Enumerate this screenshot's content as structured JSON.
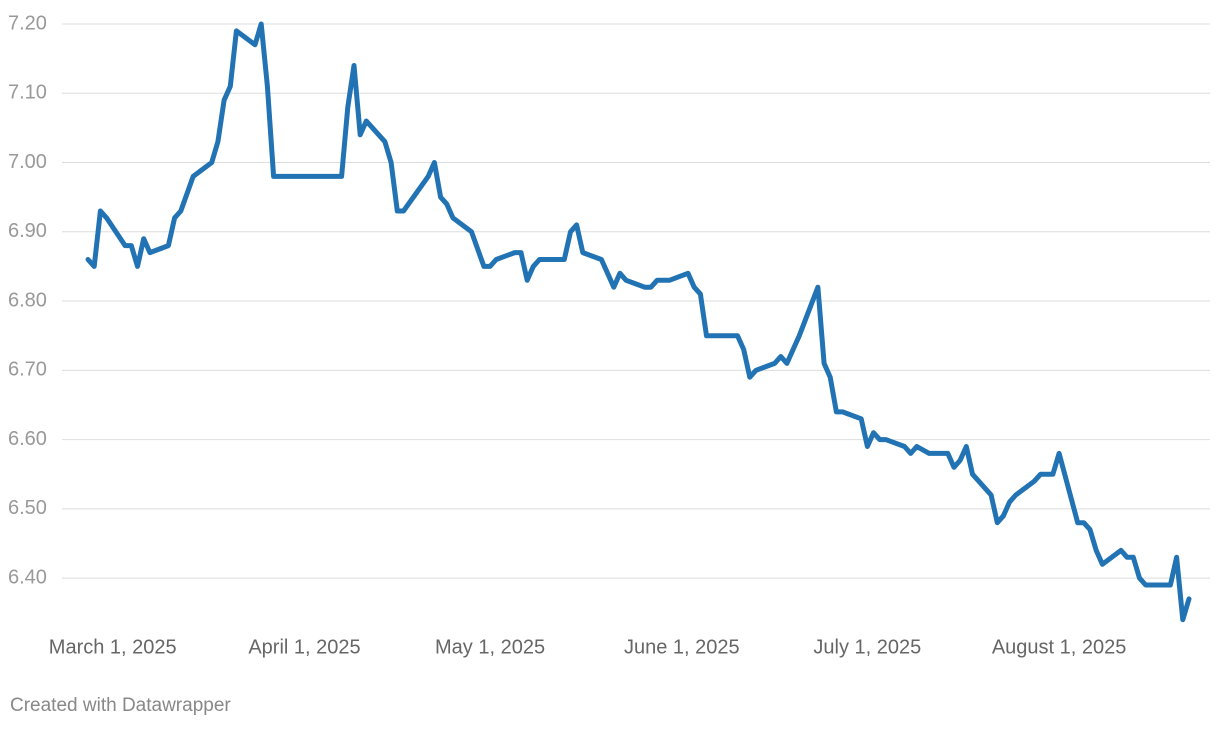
{
  "chart_data": {
    "type": "line",
    "x": [
      "2025-02-25",
      "2025-02-26",
      "2025-02-27",
      "2025-02-28",
      "2025-03-03",
      "2025-03-04",
      "2025-03-05",
      "2025-03-06",
      "2025-03-07",
      "2025-03-10",
      "2025-03-11",
      "2025-03-12",
      "2025-03-14",
      "2025-03-17",
      "2025-03-18",
      "2025-03-19",
      "2025-03-20",
      "2025-03-21",
      "2025-03-24",
      "2025-03-25",
      "2025-03-26",
      "2025-03-27",
      "2025-04-07",
      "2025-04-08",
      "2025-04-09",
      "2025-04-10",
      "2025-04-11",
      "2025-04-14",
      "2025-04-15",
      "2025-04-16",
      "2025-04-17",
      "2025-04-21",
      "2025-04-22",
      "2025-04-23",
      "2025-04-24",
      "2025-04-25",
      "2025-04-28",
      "2025-04-30",
      "2025-05-01",
      "2025-05-02",
      "2025-05-05",
      "2025-05-06",
      "2025-05-07",
      "2025-05-08",
      "2025-05-09",
      "2025-05-13",
      "2025-05-14",
      "2025-05-15",
      "2025-05-16",
      "2025-05-19",
      "2025-05-20",
      "2025-05-21",
      "2025-05-22",
      "2025-05-23",
      "2025-05-26",
      "2025-05-27",
      "2025-05-28",
      "2025-05-30",
      "2025-06-02",
      "2025-06-03",
      "2025-06-04",
      "2025-06-05",
      "2025-06-10",
      "2025-06-11",
      "2025-06-12",
      "2025-06-13",
      "2025-06-16",
      "2025-06-17",
      "2025-06-18",
      "2025-06-19",
      "2025-06-20",
      "2025-06-23",
      "2025-06-24",
      "2025-06-25",
      "2025-06-26",
      "2025-06-27",
      "2025-06-30",
      "2025-07-01",
      "2025-07-02",
      "2025-07-03",
      "2025-07-04",
      "2025-07-07",
      "2025-07-08",
      "2025-07-09",
      "2025-07-11",
      "2025-07-14",
      "2025-07-15",
      "2025-07-16",
      "2025-07-17",
      "2025-07-18",
      "2025-07-21",
      "2025-07-22",
      "2025-07-23",
      "2025-07-24",
      "2025-07-25",
      "2025-07-28",
      "2025-07-29",
      "2025-07-31",
      "2025-08-01",
      "2025-08-04",
      "2025-08-05",
      "2025-08-06",
      "2025-08-07",
      "2025-08-08",
      "2025-08-11",
      "2025-08-12",
      "2025-08-13",
      "2025-08-14",
      "2025-08-15",
      "2025-08-19",
      "2025-08-20",
      "2025-08-21",
      "2025-08-22"
    ],
    "series": [
      {
        "color": "#2273b4",
        "values": [
          6.86,
          6.85,
          6.93,
          6.92,
          6.88,
          6.88,
          6.85,
          6.89,
          6.87,
          6.88,
          6.92,
          6.93,
          6.98,
          7.0,
          7.03,
          7.09,
          7.11,
          7.19,
          7.17,
          7.2,
          7.11,
          6.98,
          6.98,
          7.08,
          7.14,
          7.04,
          7.06,
          7.03,
          7.0,
          6.93,
          6.93,
          6.98,
          7.0,
          6.95,
          6.94,
          6.92,
          6.9,
          6.85,
          6.85,
          6.86,
          6.87,
          6.87,
          6.83,
          6.85,
          6.86,
          6.86,
          6.9,
          6.91,
          6.87,
          6.86,
          6.84,
          6.82,
          6.84,
          6.83,
          6.82,
          6.82,
          6.83,
          6.83,
          6.84,
          6.82,
          6.81,
          6.75,
          6.75,
          6.73,
          6.69,
          6.7,
          6.71,
          6.72,
          6.71,
          6.73,
          6.75,
          6.82,
          6.71,
          6.69,
          6.64,
          6.64,
          6.63,
          6.59,
          6.61,
          6.6,
          6.6,
          6.59,
          6.58,
          6.59,
          6.58,
          6.58,
          6.56,
          6.57,
          6.59,
          6.55,
          6.52,
          6.48,
          6.49,
          6.51,
          6.52,
          6.54,
          6.55,
          6.55,
          6.58,
          6.48,
          6.48,
          6.47,
          6.44,
          6.42,
          6.44,
          6.43,
          6.43,
          6.4,
          6.39,
          6.39,
          6.43,
          6.34,
          6.37
        ]
      }
    ],
    "xlim": [
      "2025-02-25",
      "2025-08-22"
    ],
    "xticks": [
      {
        "value": "2025-03-01",
        "label": "March 1, 2025"
      },
      {
        "value": "2025-04-01",
        "label": "April 1, 2025"
      },
      {
        "value": "2025-05-01",
        "label": "May 1, 2025"
      },
      {
        "value": "2025-06-01",
        "label": "June 1, 2025"
      },
      {
        "value": "2025-07-01",
        "label": "July 1, 2025"
      },
      {
        "value": "2025-08-01",
        "label": "August 1, 2025"
      }
    ],
    "ylim": [
      6.33,
      7.215
    ],
    "yticks": [
      {
        "value": 6.4,
        "label": "6.40"
      },
      {
        "value": 6.5,
        "label": "6.50"
      },
      {
        "value": 6.6,
        "label": "6.60"
      },
      {
        "value": 6.7,
        "label": "6.70"
      },
      {
        "value": 6.8,
        "label": "6.80"
      },
      {
        "value": 6.9,
        "label": "6.90"
      },
      {
        "value": 7.0,
        "label": "7.00"
      },
      {
        "value": 7.1,
        "label": "7.10"
      },
      {
        "value": 7.2,
        "label": "7.20"
      }
    ],
    "grid": true,
    "credit": "Created with Datawrapper"
  }
}
